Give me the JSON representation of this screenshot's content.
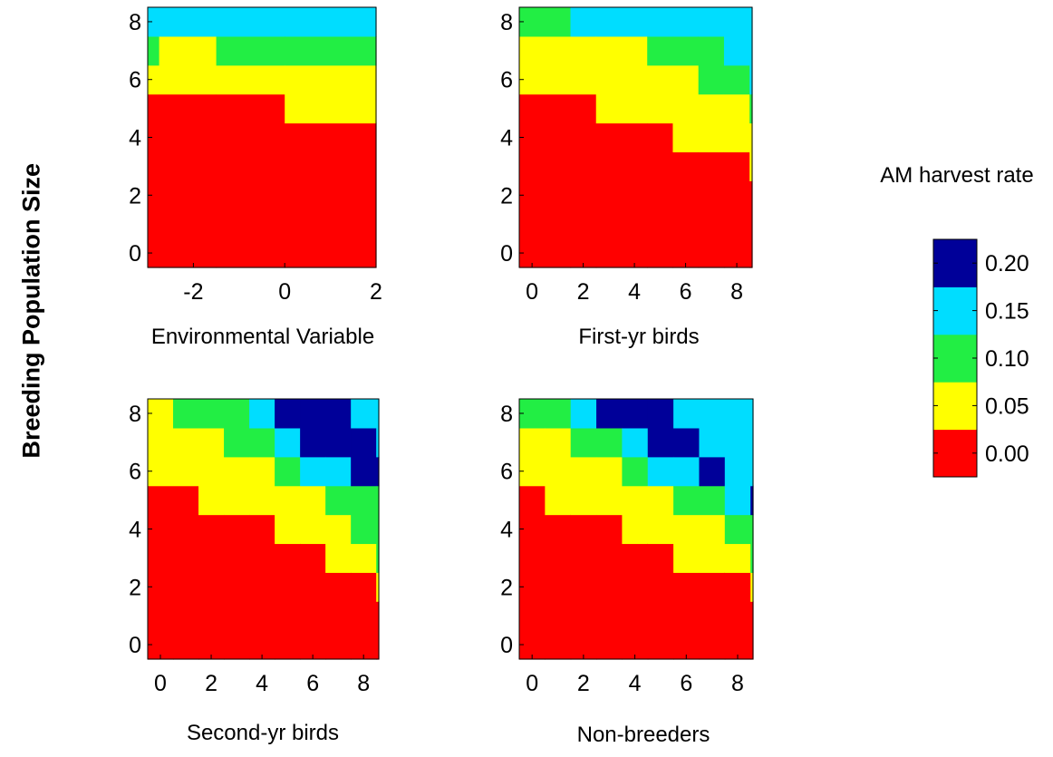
{
  "figure": {
    "shared_ylabel": "Breeding Population Size",
    "colorbar": {
      "title": "AM harvest rate",
      "ticks": [
        "0.20",
        "0.15",
        "0.10",
        "0.05",
        "0.00"
      ],
      "levels": [
        {
          "label": "0.00",
          "color": "#ff0000"
        },
        {
          "label": "0.05",
          "color": "#ffff00"
        },
        {
          "label": "0.10",
          "color": "#22ee44"
        },
        {
          "label": "0.15",
          "color": "#00ddff"
        },
        {
          "label": "0.20",
          "color": "#000099"
        }
      ]
    }
  },
  "chart_data": [
    {
      "type": "heatmap",
      "xlabel": "Environmental Variable",
      "ylabel": "Breeding Population Size",
      "xlim": [
        -3,
        2
      ],
      "ylim": [
        -0.5,
        8.5
      ],
      "xticks": [
        -2,
        0,
        2
      ],
      "yticks": [
        0,
        2,
        4,
        6,
        8
      ],
      "colorbar_levels": [
        0.0,
        0.05,
        0.1,
        0.15,
        0.2
      ],
      "bands_y_by_x_range": [
        {
          "x_range": [
            -3,
            -2.75
          ],
          "levels": [
            [
              -0.5,
              5.5,
              0.0
            ],
            [
              5.5,
              6.5,
              0.05
            ],
            [
              6.5,
              7.5,
              0.1
            ],
            [
              7.5,
              8.5,
              0.15
            ]
          ]
        },
        {
          "x_range": [
            -2.75,
            -1.5
          ],
          "levels": [
            [
              -0.5,
              5.5,
              0.0
            ],
            [
              5.5,
              7.5,
              0.05
            ],
            [
              7.5,
              8.5,
              0.15
            ]
          ]
        },
        {
          "x_range": [
            -1.5,
            0
          ],
          "levels": [
            [
              -0.5,
              5.5,
              0.0
            ],
            [
              5.5,
              6.5,
              0.05
            ],
            [
              6.5,
              7.5,
              0.1
            ],
            [
              7.5,
              8.5,
              0.15
            ]
          ]
        },
        {
          "x_range": [
            0,
            2
          ],
          "levels": [
            [
              -0.5,
              4.5,
              0.0
            ],
            [
              4.5,
              6.5,
              0.05
            ],
            [
              6.5,
              7.5,
              0.1
            ],
            [
              7.5,
              8.5,
              0.15
            ]
          ]
        }
      ]
    },
    {
      "type": "heatmap",
      "xlabel": "First-yr birds",
      "ylabel": "Breeding Population Size",
      "xlim": [
        -0.5,
        8.6
      ],
      "ylim": [
        -0.5,
        8.5
      ],
      "xticks": [
        0,
        2,
        4,
        6,
        8
      ],
      "yticks": [
        0,
        2,
        4,
        6,
        8
      ],
      "colorbar_levels": [
        0.0,
        0.05,
        0.1,
        0.15,
        0.2
      ],
      "bands_y_by_x_range": [
        {
          "x_range": [
            -0.5,
            1.5
          ],
          "levels": [
            [
              -0.5,
              5.5,
              0.0
            ],
            [
              5.5,
              7.5,
              0.05
            ],
            [
              7.5,
              8.5,
              0.1
            ]
          ]
        },
        {
          "x_range": [
            1.5,
            2.5
          ],
          "levels": [
            [
              -0.5,
              5.5,
              0.0
            ],
            [
              5.5,
              7.5,
              0.05
            ],
            [
              7.5,
              8.5,
              0.15
            ]
          ]
        },
        {
          "x_range": [
            2.5,
            4.5
          ],
          "levels": [
            [
              -0.5,
              4.5,
              0.0
            ],
            [
              4.5,
              7.5,
              0.05
            ],
            [
              7.5,
              8.5,
              0.15
            ]
          ]
        },
        {
          "x_range": [
            4.5,
            5.5
          ],
          "levels": [
            [
              -0.5,
              4.5,
              0.0
            ],
            [
              4.5,
              6.5,
              0.05
            ],
            [
              6.5,
              7.5,
              0.1
            ],
            [
              7.5,
              8.5,
              0.15
            ]
          ]
        },
        {
          "x_range": [
            5.5,
            6.5
          ],
          "levels": [
            [
              -0.5,
              3.5,
              0.0
            ],
            [
              3.5,
              6.5,
              0.05
            ],
            [
              6.5,
              7.5,
              0.1
            ],
            [
              7.5,
              8.5,
              0.15
            ]
          ]
        },
        {
          "x_range": [
            6.5,
            7.5
          ],
          "levels": [
            [
              -0.5,
              3.5,
              0.0
            ],
            [
              3.5,
              5.5,
              0.05
            ],
            [
              5.5,
              7.5,
              0.1
            ],
            [
              7.5,
              8.5,
              0.15
            ]
          ]
        },
        {
          "x_range": [
            7.5,
            8.5
          ],
          "levels": [
            [
              -0.5,
              3.5,
              0.0
            ],
            [
              3.5,
              5.5,
              0.05
            ],
            [
              5.5,
              6.5,
              0.1
            ],
            [
              6.5,
              8.5,
              0.15
            ]
          ]
        },
        {
          "x_range": [
            8.5,
            8.6
          ],
          "levels": [
            [
              -0.5,
              2.5,
              0.0
            ],
            [
              2.5,
              4.5,
              0.05
            ],
            [
              4.5,
              5.5,
              0.1
            ],
            [
              5.5,
              8.5,
              0.15
            ]
          ]
        }
      ]
    },
    {
      "type": "heatmap",
      "xlabel": "Second-yr birds",
      "ylabel": "Breeding Population Size",
      "xlim": [
        -0.5,
        8.6
      ],
      "ylim": [
        -0.5,
        8.5
      ],
      "xticks": [
        0,
        2,
        4,
        6,
        8
      ],
      "yticks": [
        0,
        2,
        4,
        6,
        8
      ],
      "colorbar_levels": [
        0.0,
        0.05,
        0.1,
        0.15,
        0.2
      ],
      "bands_y_by_x_range": [
        {
          "x_range": [
            -0.5,
            0.5
          ],
          "levels": [
            [
              -0.5,
              5.5,
              0.0
            ],
            [
              5.5,
              8.5,
              0.05
            ]
          ]
        },
        {
          "x_range": [
            0.5,
            1.5
          ],
          "levels": [
            [
              -0.5,
              5.5,
              0.0
            ],
            [
              5.5,
              7.5,
              0.05
            ],
            [
              7.5,
              8.5,
              0.1
            ]
          ]
        },
        {
          "x_range": [
            1.5,
            2.5
          ],
          "levels": [
            [
              -0.5,
              4.5,
              0.0
            ],
            [
              4.5,
              7.5,
              0.05
            ],
            [
              7.5,
              8.5,
              0.1
            ]
          ]
        },
        {
          "x_range": [
            2.5,
            3.5
          ],
          "levels": [
            [
              -0.5,
              4.5,
              0.0
            ],
            [
              4.5,
              6.5,
              0.05
            ],
            [
              6.5,
              7.5,
              0.1
            ],
            [
              7.5,
              8.5,
              0.1
            ]
          ]
        },
        {
          "x_range": [
            3.5,
            4.5
          ],
          "levels": [
            [
              -0.5,
              4.5,
              0.0
            ],
            [
              4.5,
              6.5,
              0.05
            ],
            [
              6.5,
              7.5,
              0.1
            ],
            [
              7.5,
              8.5,
              0.15
            ]
          ]
        },
        {
          "x_range": [
            4.5,
            5.5
          ],
          "levels": [
            [
              -0.5,
              3.5,
              0.0
            ],
            [
              3.5,
              5.5,
              0.05
            ],
            [
              5.5,
              6.5,
              0.1
            ],
            [
              6.5,
              7.5,
              0.15
            ],
            [
              7.5,
              8.5,
              0.2
            ]
          ]
        },
        {
          "x_range": [
            5.5,
            6.5
          ],
          "levels": [
            [
              -0.5,
              3.5,
              0.0
            ],
            [
              3.5,
              5.5,
              0.05
            ],
            [
              5.5,
              6.5,
              0.15
            ],
            [
              6.5,
              8.5,
              0.2
            ]
          ]
        },
        {
          "x_range": [
            6.5,
            7.5
          ],
          "levels": [
            [
              -0.5,
              2.5,
              0.0
            ],
            [
              2.5,
              4.5,
              0.05
            ],
            [
              4.5,
              5.5,
              0.1
            ],
            [
              5.5,
              6.5,
              0.15
            ],
            [
              6.5,
              8.5,
              0.2
            ]
          ]
        },
        {
          "x_range": [
            7.5,
            8.5
          ],
          "levels": [
            [
              -0.5,
              2.5,
              0.0
            ],
            [
              2.5,
              3.5,
              0.05
            ],
            [
              3.5,
              5.5,
              0.1
            ],
            [
              5.5,
              7.5,
              0.2
            ],
            [
              7.5,
              8.5,
              0.15
            ]
          ]
        },
        {
          "x_range": [
            8.5,
            8.6
          ],
          "levels": [
            [
              -0.5,
              1.5,
              0.0
            ],
            [
              1.5,
              2.5,
              0.05
            ],
            [
              2.5,
              5.5,
              0.1
            ],
            [
              5.5,
              6.5,
              0.2
            ],
            [
              6.5,
              8.5,
              0.15
            ]
          ]
        }
      ]
    },
    {
      "type": "heatmap",
      "xlabel": "Non-breeders",
      "ylabel": "Breeding Population Size",
      "xlim": [
        -0.5,
        8.6
      ],
      "ylim": [
        -0.5,
        8.5
      ],
      "xticks": [
        0,
        2,
        4,
        6,
        8
      ],
      "yticks": [
        0,
        2,
        4,
        6,
        8
      ],
      "colorbar_levels": [
        0.0,
        0.05,
        0.1,
        0.15,
        0.2
      ],
      "bands_y_by_x_range": [
        {
          "x_range": [
            -0.5,
            0.5
          ],
          "levels": [
            [
              -0.5,
              5.5,
              0.0
            ],
            [
              5.5,
              7.5,
              0.05
            ],
            [
              7.5,
              8.5,
              0.1
            ]
          ]
        },
        {
          "x_range": [
            0.5,
            1.5
          ],
          "levels": [
            [
              -0.5,
              4.5,
              0.0
            ],
            [
              4.5,
              7.5,
              0.05
            ],
            [
              7.5,
              8.5,
              0.1
            ]
          ]
        },
        {
          "x_range": [
            1.5,
            2.5
          ],
          "levels": [
            [
              -0.5,
              4.5,
              0.0
            ],
            [
              4.5,
              6.5,
              0.05
            ],
            [
              6.5,
              7.5,
              0.1
            ],
            [
              7.5,
              8.5,
              0.15
            ]
          ]
        },
        {
          "x_range": [
            2.5,
            3.5
          ],
          "levels": [
            [
              -0.5,
              4.5,
              0.0
            ],
            [
              4.5,
              6.5,
              0.05
            ],
            [
              6.5,
              7.5,
              0.1
            ],
            [
              7.5,
              8.5,
              0.2
            ]
          ]
        },
        {
          "x_range": [
            3.5,
            4.5
          ],
          "levels": [
            [
              -0.5,
              3.5,
              0.0
            ],
            [
              3.5,
              5.5,
              0.05
            ],
            [
              5.5,
              6.5,
              0.1
            ],
            [
              6.5,
              7.5,
              0.15
            ],
            [
              7.5,
              8.5,
              0.2
            ]
          ]
        },
        {
          "x_range": [
            4.5,
            5.5
          ],
          "levels": [
            [
              -0.5,
              3.5,
              0.0
            ],
            [
              3.5,
              5.5,
              0.05
            ],
            [
              5.5,
              6.5,
              0.15
            ],
            [
              6.5,
              8.5,
              0.2
            ]
          ]
        },
        {
          "x_range": [
            5.5,
            6.5
          ],
          "levels": [
            [
              -0.5,
              2.5,
              0.0
            ],
            [
              2.5,
              4.5,
              0.05
            ],
            [
              4.5,
              5.5,
              0.1
            ],
            [
              5.5,
              6.5,
              0.15
            ],
            [
              6.5,
              7.5,
              0.2
            ],
            [
              7.5,
              8.5,
              0.15
            ]
          ]
        },
        {
          "x_range": [
            6.5,
            7.5
          ],
          "levels": [
            [
              -0.5,
              2.5,
              0.0
            ],
            [
              2.5,
              4.5,
              0.05
            ],
            [
              4.5,
              5.5,
              0.1
            ],
            [
              5.5,
              6.5,
              0.2
            ],
            [
              6.5,
              8.5,
              0.15
            ]
          ]
        },
        {
          "x_range": [
            7.5,
            8.5
          ],
          "levels": [
            [
              -0.5,
              2.5,
              0.0
            ],
            [
              2.5,
              3.5,
              0.05
            ],
            [
              3.5,
              4.5,
              0.1
            ],
            [
              4.5,
              5.5,
              0.15
            ],
            [
              5.5,
              8.5,
              0.15
            ]
          ]
        },
        {
          "x_range": [
            8.5,
            8.6
          ],
          "levels": [
            [
              -0.5,
              1.5,
              0.0
            ],
            [
              1.5,
              2.5,
              0.05
            ],
            [
              2.5,
              4.5,
              0.1
            ],
            [
              4.5,
              5.5,
              0.2
            ],
            [
              5.5,
              8.5,
              0.15
            ]
          ]
        }
      ]
    }
  ]
}
